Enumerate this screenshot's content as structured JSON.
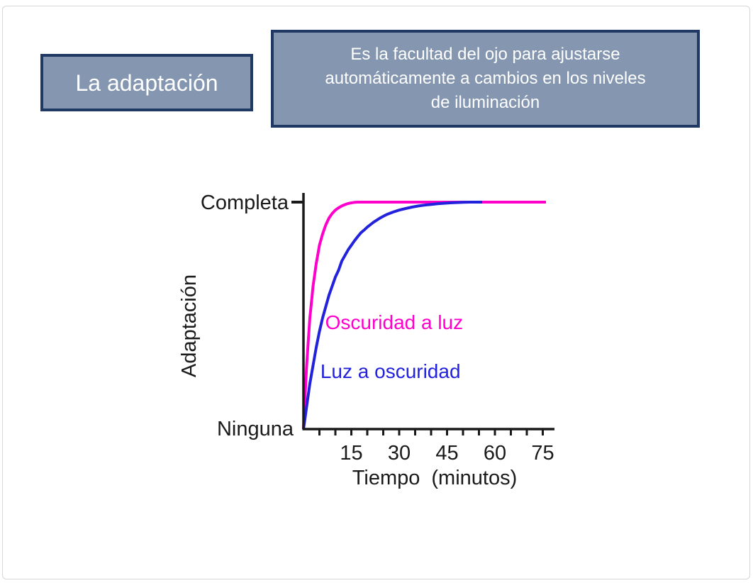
{
  "slide": {
    "background": "#ffffff",
    "frame_border_color": "#d6d6d6"
  },
  "title_box": {
    "label": "La adaptación",
    "fill": "#8496b0",
    "border_color": "#1f3864",
    "text_color": "#ffffff"
  },
  "definition_box": {
    "text": "Es la facultad del ojo para ajustarse automáticamente a cambios en los niveles de iluminación",
    "lines": [
      "Es la facultad del ojo para ajustarse",
      "automáticamente a cambios en los niveles",
      "de iluminación"
    ],
    "fill": "#8496b0",
    "border_color": "#1f3864",
    "text_color": "#ffffff"
  },
  "chart_data": {
    "type": "line",
    "title": "",
    "xlabel": "Tiempo (minutos)",
    "ylabel": "Adaptación",
    "y_axis_labels": {
      "top": "Completa",
      "bottom": "Ninguna"
    },
    "x_ticks_labeled": [
      15,
      30,
      45,
      60,
      75
    ],
    "x_minor_tick_step": 5,
    "x_minor_tick_max": 75,
    "xlim": [
      0,
      78
    ],
    "ylim": [
      0,
      1
    ],
    "grid": false,
    "legend_position": "inline-annotations",
    "axis_color": "#1a1a1a",
    "text_color": "#1a1a1a",
    "series": [
      {
        "name": "Oscuridad a luz",
        "color": "#ff00cc",
        "label_pos": {
          "t": 6.8,
          "v": 0.44
        },
        "points": [
          [
            0,
            0
          ],
          [
            0.5,
            0.15
          ],
          [
            1,
            0.28
          ],
          [
            1.5,
            0.39
          ],
          [
            2,
            0.49
          ],
          [
            2.5,
            0.56
          ],
          [
            3,
            0.63
          ],
          [
            3.5,
            0.68
          ],
          [
            4,
            0.73
          ],
          [
            4.5,
            0.77
          ],
          [
            5,
            0.81
          ],
          [
            6,
            0.86
          ],
          [
            7,
            0.9
          ],
          [
            8,
            0.93
          ],
          [
            9,
            0.95
          ],
          [
            10,
            0.965
          ],
          [
            11,
            0.975
          ],
          [
            12,
            0.983
          ],
          [
            13,
            0.989
          ],
          [
            14,
            0.994
          ],
          [
            15,
            0.997
          ],
          [
            16,
            0.999
          ],
          [
            17,
            1
          ],
          [
            76,
            1
          ]
        ]
      },
      {
        "name": "Luz a oscuridad",
        "color": "#2222dd",
        "label_pos": {
          "t": 5.3,
          "v": 0.225
        },
        "points": [
          [
            0,
            0
          ],
          [
            0.5,
            0.05
          ],
          [
            1,
            0.1
          ],
          [
            2,
            0.2
          ],
          [
            3,
            0.28
          ],
          [
            4,
            0.36
          ],
          [
            5,
            0.43
          ],
          [
            6,
            0.49
          ],
          [
            7,
            0.54
          ],
          [
            8,
            0.59
          ],
          [
            9,
            0.63
          ],
          [
            10,
            0.67
          ],
          [
            11,
            0.7
          ],
          [
            12,
            0.74
          ],
          [
            13,
            0.765
          ],
          [
            14,
            0.79
          ],
          [
            15,
            0.81
          ],
          [
            16,
            0.83
          ],
          [
            17,
            0.848
          ],
          [
            18,
            0.865
          ],
          [
            19,
            0.877
          ],
          [
            20,
            0.89
          ],
          [
            22,
            0.912
          ],
          [
            24,
            0.93
          ],
          [
            26,
            0.945
          ],
          [
            28,
            0.956
          ],
          [
            30,
            0.965
          ],
          [
            32,
            0.972
          ],
          [
            34,
            0.978
          ],
          [
            36,
            0.983
          ],
          [
            38,
            0.987
          ],
          [
            40,
            0.99
          ],
          [
            42,
            0.993
          ],
          [
            44,
            0.995
          ],
          [
            46,
            0.997
          ],
          [
            48,
            0.998
          ],
          [
            50,
            0.999
          ],
          [
            52,
            1
          ],
          [
            56,
            1
          ]
        ]
      }
    ]
  }
}
